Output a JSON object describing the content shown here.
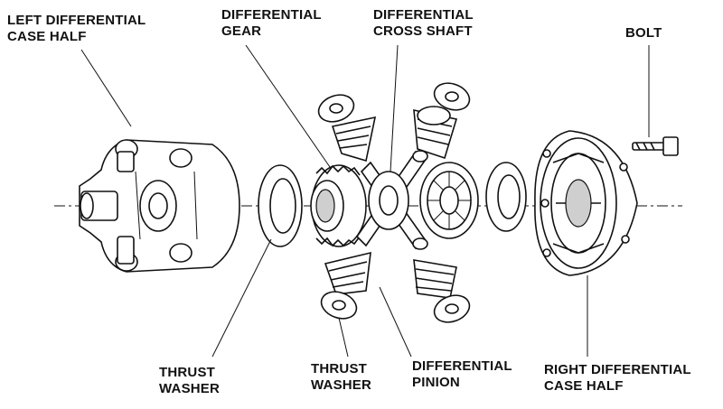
{
  "labels": {
    "left_case_half": [
      "LEFT DIFFERENTIAL",
      "CASE HALF"
    ],
    "differential_gear": [
      "DIFFERENTIAL",
      "GEAR"
    ],
    "cross_shaft": [
      "DIFFERENTIAL",
      "CROSS SHAFT"
    ],
    "bolt": [
      "BOLT"
    ],
    "thrust_washer_left": [
      "THRUST",
      "WASHER"
    ],
    "thrust_washer_center": [
      "THRUST",
      "WASHER"
    ],
    "differential_pinion": [
      "DIFFERENTIAL",
      "PINION"
    ],
    "right_case_half": [
      "RIGHT DIFFERENTIAL",
      "CASE HALF"
    ]
  }
}
